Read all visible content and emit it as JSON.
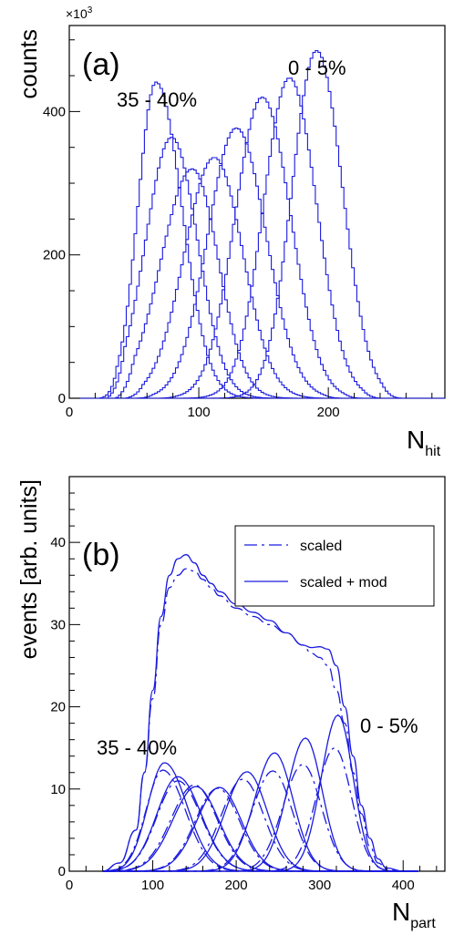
{
  "chart_data": [
    {
      "panel_label": "(a)",
      "type": "line",
      "ylabel": "counts",
      "y_multiplier": "×10",
      "y_multiplier_exp": "3",
      "xlabel_main": "N",
      "xlabel_sub": "hit",
      "xlim": [
        0,
        290
      ],
      "ylim": [
        0,
        520
      ],
      "x_ticks": [
        0,
        100,
        200
      ],
      "y_ticks": [
        0,
        200,
        400
      ],
      "annotations": [
        "35 - 40%",
        "0 - 5%"
      ],
      "colors": {
        "series": "#1a1adf"
      },
      "series": [
        {
          "peak_x": 190,
          "peak_y": 485,
          "lo": 95,
          "hi": 255,
          "sl": 19,
          "sr": 20
        },
        {
          "peak_x": 169,
          "peak_y": 447,
          "lo": 80,
          "hi": 240,
          "sl": 20,
          "sr": 21
        },
        {
          "peak_x": 148,
          "peak_y": 420,
          "lo": 65,
          "hi": 225,
          "sl": 21,
          "sr": 22
        },
        {
          "peak_x": 128,
          "peak_y": 377,
          "lo": 50,
          "hi": 210,
          "sl": 22,
          "sr": 23
        },
        {
          "peak_x": 111,
          "peak_y": 336,
          "lo": 42,
          "hi": 200,
          "sl": 23,
          "sr": 22
        },
        {
          "peak_x": 94,
          "peak_y": 320,
          "lo": 35,
          "hi": 185,
          "sl": 24,
          "sr": 20
        },
        {
          "peak_x": 78,
          "peak_y": 364,
          "lo": 28,
          "hi": 165,
          "sl": 20,
          "sr": 20
        },
        {
          "peak_x": 66,
          "peak_y": 441,
          "lo": 22,
          "hi": 150,
          "sl": 14,
          "sr": 20
        }
      ]
    },
    {
      "panel_label": "(b)",
      "type": "line",
      "ylabel": "events  [arb. units]",
      "xlabel_main": "N",
      "xlabel_sub": "part",
      "xlim": [
        0,
        450
      ],
      "ylim": [
        0,
        48
      ],
      "x_ticks": [
        0,
        100,
        200,
        300,
        400
      ],
      "y_ticks": [
        0,
        10,
        20,
        30,
        40
      ],
      "annotations": [
        "35 - 40%",
        "0 - 5%"
      ],
      "legend": {
        "position": "top-right",
        "entries": [
          "scaled",
          "scaled + mod"
        ]
      },
      "colors": {
        "series": "#1a1adf"
      },
      "envelope_solid": [
        [
          40,
          0
        ],
        [
          60,
          1
        ],
        [
          80,
          5
        ],
        [
          90,
          12
        ],
        [
          100,
          22
        ],
        [
          110,
          31
        ],
        [
          120,
          36
        ],
        [
          130,
          38
        ],
        [
          140,
          38.5
        ],
        [
          150,
          37.5
        ],
        [
          160,
          36
        ],
        [
          170,
          35
        ],
        [
          180,
          34
        ],
        [
          200,
          32.5
        ],
        [
          220,
          31.5
        ],
        [
          240,
          30.5
        ],
        [
          260,
          29
        ],
        [
          280,
          27.5
        ],
        [
          290,
          27.2
        ],
        [
          300,
          27.3
        ],
        [
          310,
          27
        ],
        [
          320,
          25
        ],
        [
          330,
          20
        ],
        [
          340,
          14
        ],
        [
          350,
          8
        ],
        [
          360,
          4
        ],
        [
          370,
          1.5
        ],
        [
          380,
          0.4
        ],
        [
          400,
          0
        ]
      ],
      "envelope_dashed": [
        [
          40,
          0
        ],
        [
          60,
          1
        ],
        [
          80,
          5
        ],
        [
          90,
          12
        ],
        [
          100,
          21
        ],
        [
          110,
          30
        ],
        [
          120,
          34.5
        ],
        [
          130,
          36
        ],
        [
          140,
          36.8
        ],
        [
          150,
          36.5
        ],
        [
          160,
          35.5
        ],
        [
          170,
          34.5
        ],
        [
          180,
          33.5
        ],
        [
          200,
          32
        ],
        [
          220,
          31
        ],
        [
          240,
          30
        ],
        [
          260,
          29
        ],
        [
          280,
          27.5
        ],
        [
          290,
          26.5
        ],
        [
          300,
          26
        ],
        [
          310,
          25
        ],
        [
          320,
          22
        ],
        [
          330,
          18
        ],
        [
          340,
          12
        ],
        [
          350,
          7
        ],
        [
          360,
          3
        ],
        [
          370,
          1
        ],
        [
          380,
          0.3
        ],
        [
          400,
          0
        ]
      ],
      "solid_series": [
        {
          "peak_x": 322,
          "peak_y": 19.0,
          "sl": 20,
          "sr": 18
        },
        {
          "peak_x": 283,
          "peak_y": 16.2,
          "sl": 22,
          "sr": 20
        },
        {
          "peak_x": 246,
          "peak_y": 14.4,
          "sl": 24,
          "sr": 22
        },
        {
          "peak_x": 213,
          "peak_y": 12.1,
          "sl": 26,
          "sr": 24
        },
        {
          "peak_x": 180,
          "peak_y": 10.2,
          "sl": 27,
          "sr": 26
        },
        {
          "peak_x": 152,
          "peak_y": 10.3,
          "sl": 28,
          "sr": 27
        },
        {
          "peak_x": 130,
          "peak_y": 11.5,
          "sl": 25,
          "sr": 28
        },
        {
          "peak_x": 114,
          "peak_y": 13.2,
          "sl": 20,
          "sr": 27
        }
      ],
      "dashed_series": [
        {
          "peak_x": 318,
          "peak_y": 15.0,
          "sl": 22,
          "sr": 20
        },
        {
          "peak_x": 280,
          "peak_y": 13.0,
          "sl": 24,
          "sr": 22
        },
        {
          "peak_x": 244,
          "peak_y": 12.2,
          "sl": 25,
          "sr": 23
        },
        {
          "peak_x": 208,
          "peak_y": 11.2,
          "sl": 26,
          "sr": 25
        },
        {
          "peak_x": 178,
          "peak_y": 10.1,
          "sl": 27,
          "sr": 26
        },
        {
          "peak_x": 150,
          "peak_y": 10.5,
          "sl": 28,
          "sr": 27
        },
        {
          "peak_x": 130,
          "peak_y": 11.0,
          "sl": 25,
          "sr": 28
        },
        {
          "peak_x": 112,
          "peak_y": 12.3,
          "sl": 20,
          "sr": 27
        }
      ]
    }
  ]
}
